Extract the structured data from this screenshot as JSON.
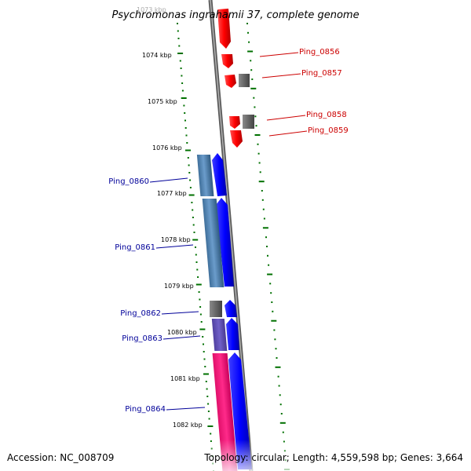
{
  "title": "Psychromonas ingrahamii 37, complete genome",
  "top_tick_label": "1073 kbp",
  "footer": {
    "accession": "Accession: NC_008709",
    "summary": "Topology: circular; Length: 4,559,598 bp; Genes: 3,664"
  },
  "colors": {
    "forward": "#ff0000",
    "reverse": "#0000ff",
    "other": "#666666",
    "tick": "#007000",
    "backbone": "#888888",
    "label_right": "#cc0000",
    "label_left": "#000099"
  },
  "ticks": [
    "1074 kbp",
    "1075 kbp",
    "1076 kbp",
    "1077 kbp",
    "1078 kbp",
    "1079 kbp",
    "1080 kbp",
    "1081 kbp",
    "1082 kbp"
  ],
  "gene_labels_right": [
    "Ping_0856",
    "Ping_0857",
    "Ping_0858",
    "Ping_0859"
  ],
  "gene_labels_left": [
    "Ping_0860",
    "Ping_0861",
    "Ping_0862",
    "Ping_0863",
    "Ping_0864"
  ]
}
